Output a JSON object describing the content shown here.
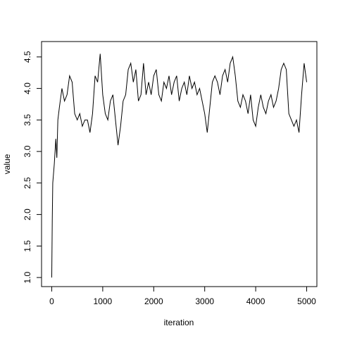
{
  "chart_data": {
    "type": "line",
    "xlabel": "iteration",
    "ylabel": "value",
    "x": [
      0,
      10,
      20,
      50,
      80,
      100,
      120,
      150,
      200,
      250,
      300,
      350,
      400,
      450,
      500,
      550,
      600,
      650,
      700,
      750,
      800,
      850,
      900,
      950,
      1000,
      1050,
      1100,
      1150,
      1200,
      1250,
      1300,
      1350,
      1400,
      1450,
      1500,
      1550,
      1600,
      1650,
      1700,
      1750,
      1800,
      1850,
      1900,
      1950,
      2000,
      2050,
      2100,
      2150,
      2200,
      2250,
      2300,
      2350,
      2400,
      2450,
      2500,
      2550,
      2600,
      2650,
      2700,
      2750,
      2800,
      2850,
      2900,
      2950,
      3000,
      3050,
      3100,
      3150,
      3200,
      3250,
      3300,
      3350,
      3400,
      3450,
      3500,
      3550,
      3600,
      3650,
      3700,
      3750,
      3800,
      3850,
      3900,
      3950,
      4000,
      4050,
      4100,
      4150,
      4200,
      4250,
      4300,
      4350,
      4400,
      4450,
      4500,
      4550,
      4600,
      4650,
      4700,
      4750,
      4800,
      4850,
      4900,
      4950,
      5000
    ],
    "values": [
      1.0,
      1.9,
      2.5,
      2.8,
      3.2,
      2.9,
      3.5,
      3.7,
      4.0,
      3.8,
      3.9,
      4.2,
      4.1,
      3.6,
      3.5,
      3.6,
      3.4,
      3.5,
      3.5,
      3.3,
      3.6,
      4.2,
      4.1,
      4.55,
      3.9,
      3.6,
      3.5,
      3.8,
      3.9,
      3.5,
      3.1,
      3.4,
      3.8,
      3.9,
      4.3,
      4.4,
      4.1,
      4.3,
      3.8,
      3.9,
      4.4,
      3.9,
      4.1,
      3.9,
      4.2,
      4.3,
      3.9,
      3.8,
      4.1,
      4.0,
      4.2,
      3.9,
      4.1,
      4.2,
      3.8,
      4.0,
      4.1,
      3.9,
      4.2,
      4.0,
      4.1,
      3.9,
      4.0,
      3.8,
      3.6,
      3.3,
      3.7,
      4.1,
      4.2,
      4.1,
      3.9,
      4.2,
      4.3,
      4.1,
      4.4,
      4.5,
      4.2,
      3.8,
      3.7,
      3.9,
      3.8,
      3.6,
      3.9,
      3.5,
      3.4,
      3.7,
      3.9,
      3.7,
      3.6,
      3.8,
      3.9,
      3.7,
      3.8,
      4.0,
      4.3,
      4.4,
      4.3,
      3.6,
      3.5,
      3.4,
      3.5,
      3.3,
      3.9,
      4.4,
      4.1
    ],
    "color": "#000000",
    "xlim": [
      -200,
      5200
    ],
    "ylim": [
      0.856,
      4.744
    ],
    "xticks": [
      0,
      1000,
      2000,
      3000,
      4000,
      5000
    ],
    "yticks": [
      {
        "value": 1,
        "label": "1.0"
      },
      1.5,
      {
        "value": 2,
        "label": "2.0"
      },
      2.5,
      {
        "value": 3,
        "label": "3.0"
      },
      3.5,
      {
        "value": 4,
        "label": "4.0"
      },
      4.5
    ]
  }
}
